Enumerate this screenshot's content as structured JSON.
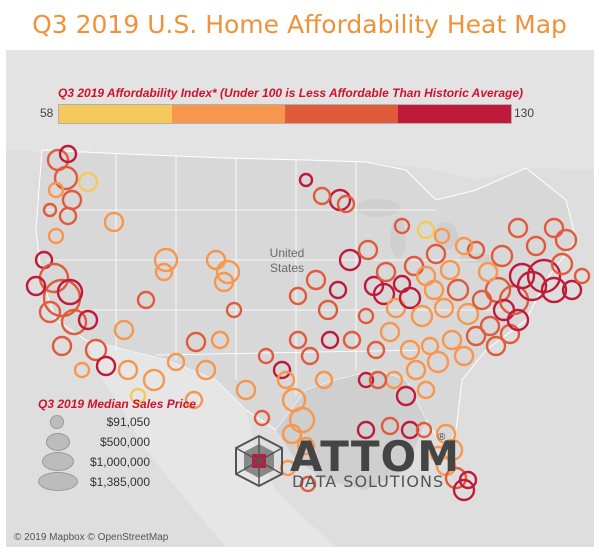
{
  "title": "Q3 2019 U.S. Home Affordability Heat Map",
  "affordability_legend": {
    "title": "Q3 2019 Affordability Index* (Under 100 is Less Affordable Than Historic Average)",
    "min_label": "58",
    "max_label": "130",
    "colors": [
      "#f5c85c",
      "#f7964e",
      "#e05a3c",
      "#c01a3a"
    ]
  },
  "map_labels": {
    "country_line1": "United",
    "country_line2": "States"
  },
  "size_legend": {
    "title": "Q3 2019 Median Sales Price",
    "items": [
      {
        "label": "$91,050"
      },
      {
        "label": "$500,000"
      },
      {
        "label": "$1,000,000"
      },
      {
        "label": "$1,385,000"
      }
    ]
  },
  "logo": {
    "name": "ATTOM",
    "reg": "®",
    "sub": "DATA SOLUTIONS",
    "icon": "attom-cube-icon"
  },
  "footer": "© 2019 Mapbox © OpenStreetMap"
}
